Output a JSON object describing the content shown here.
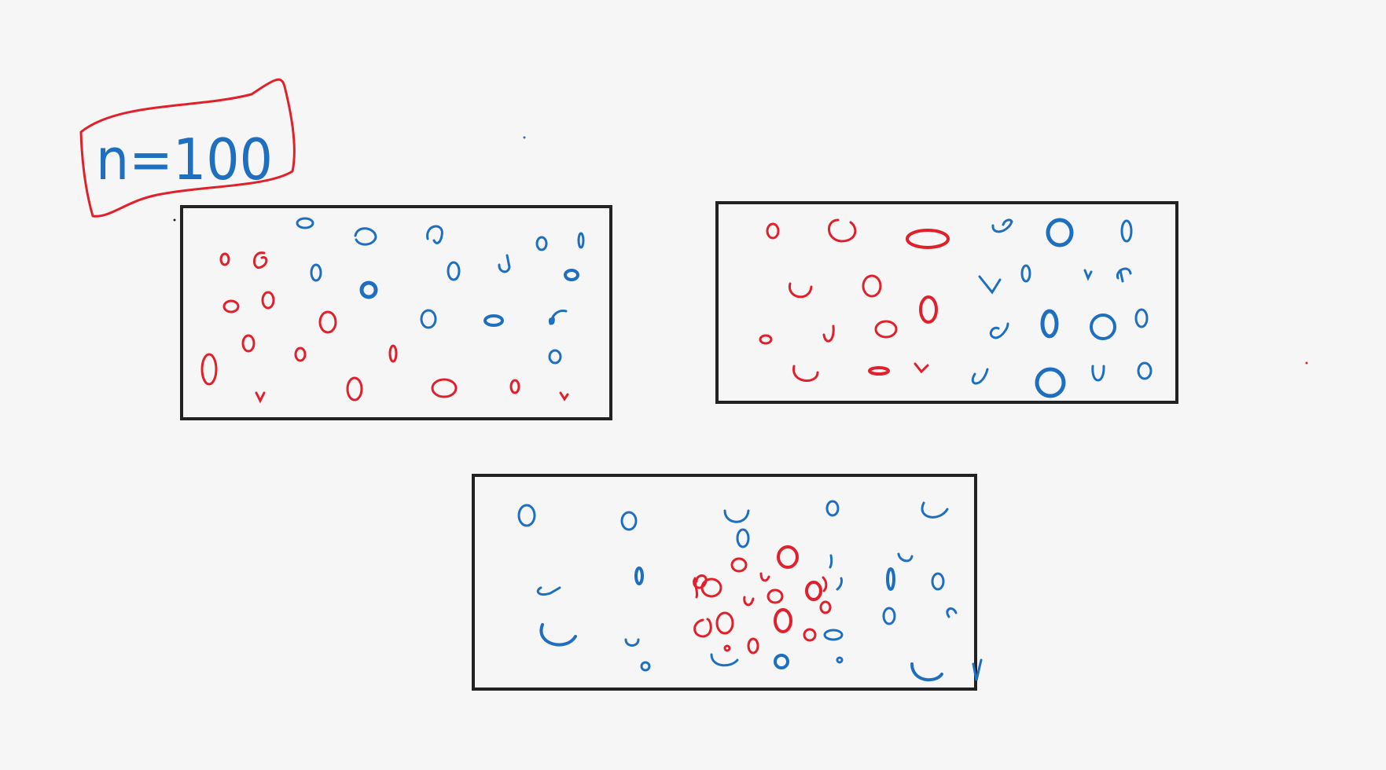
{
  "label": {
    "text": "n=100"
  },
  "colors": {
    "background": "#f6f6f6",
    "frame": "#222222",
    "red": "#e0202a",
    "blue": "#1f6fc0"
  }
}
